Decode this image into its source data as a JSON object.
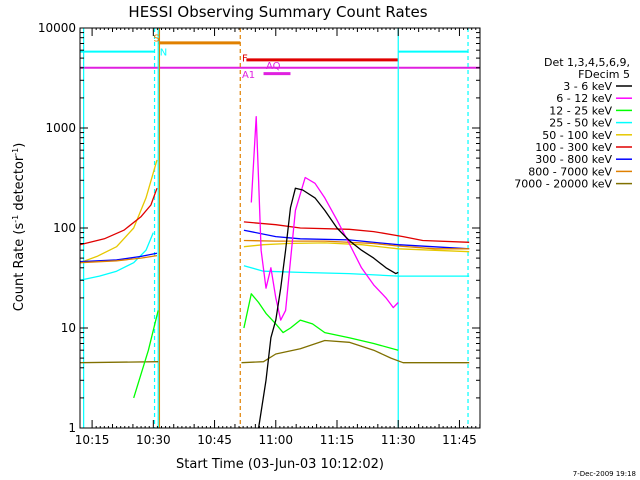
{
  "chart_data": {
    "type": "line",
    "title": "HESSI Observing Summary Count Rates",
    "xlabel": "Start Time (03-Jun-03 10:12:02)",
    "ylabel_main": "Count Rate (s",
    "ylabel_exp": "-1",
    "ylabel_tail": " detector",
    "ylabel_exp2": "-1",
    "ylabel_close": ")",
    "xlim": [
      10.2006,
      11.8339
    ],
    "ylim": [
      1,
      10000
    ],
    "yscale": "log",
    "x_ticks": [
      {
        "t": 10.25,
        "label": "10:15"
      },
      {
        "t": 10.5,
        "label": "10:30"
      },
      {
        "t": 10.75,
        "label": "10:45"
      },
      {
        "t": 11.0,
        "label": "11:00"
      },
      {
        "t": 11.25,
        "label": "11:15"
      },
      {
        "t": 11.5,
        "label": "11:30"
      },
      {
        "t": 11.75,
        "label": "11:45"
      }
    ],
    "y_ticks": [
      {
        "v": 1,
        "label": "1"
      },
      {
        "v": 10,
        "label": "10"
      },
      {
        "v": 100,
        "label": "100"
      },
      {
        "v": 1000,
        "label": "1000"
      },
      {
        "v": 10000,
        "label": "10000"
      }
    ],
    "legend": {
      "header1": "Det 1,3,4,5,6,9,",
      "header2": "FDecim 5",
      "position": "right",
      "entries": [
        {
          "label": "3 - 6 keV",
          "color": "#000000"
        },
        {
          "label": "6 - 12 keV",
          "color": "#ff00ff"
        },
        {
          "label": "12 - 25 keV",
          "color": "#00ff00"
        },
        {
          "label": "25 - 50 keV",
          "color": "#00ffff"
        },
        {
          "label": "50 - 100 keV",
          "color": "#e6c800"
        },
        {
          "label": "100 - 300 keV",
          "color": "#e00000"
        },
        {
          "label": "300 - 800 keV",
          "color": "#0000ff"
        },
        {
          "label": "800 - 7000 keV",
          "color": "#e08000"
        },
        {
          "label": "7000 - 20000 keV",
          "color": "#807000"
        }
      ]
    },
    "series": [
      {
        "color": "#00ffff",
        "points": [
          [
            10.2,
            30
          ],
          [
            10.28,
            33
          ],
          [
            10.35,
            37
          ],
          [
            10.42,
            45
          ],
          [
            10.47,
            60
          ],
          [
            10.5,
            90
          ]
        ]
      },
      {
        "color": "#807000",
        "points": [
          [
            10.2,
            4.5
          ],
          [
            10.52,
            4.6
          ]
        ]
      },
      {
        "color": "#e6c800",
        "points": [
          [
            10.2,
            45
          ],
          [
            10.27,
            52
          ],
          [
            10.35,
            65
          ],
          [
            10.42,
            100
          ],
          [
            10.47,
            200
          ],
          [
            10.515,
            480
          ]
        ]
      },
      {
        "color": "#e00000",
        "points": [
          [
            10.2,
            68
          ],
          [
            10.3,
            78
          ],
          [
            10.38,
            95
          ],
          [
            10.45,
            130
          ],
          [
            10.49,
            170
          ],
          [
            10.515,
            250
          ]
        ]
      },
      {
        "color": "#0000ff",
        "points": [
          [
            10.2,
            46
          ],
          [
            10.35,
            48
          ],
          [
            10.45,
            52
          ],
          [
            10.515,
            56
          ]
        ]
      },
      {
        "color": "#e08000",
        "points": [
          [
            10.2,
            45
          ],
          [
            10.35,
            47
          ],
          [
            10.45,
            50
          ],
          [
            10.515,
            53
          ]
        ]
      },
      {
        "color": "#00ff00",
        "points": [
          [
            10.42,
            2
          ],
          [
            10.48,
            6
          ],
          [
            10.52,
            15
          ]
        ]
      },
      {
        "color": "#807000",
        "points": [
          [
            10.86,
            4.5
          ],
          [
            10.95,
            4.6
          ],
          [
            11.0,
            5.5
          ],
          [
            11.1,
            6.2
          ],
          [
            11.2,
            7.5
          ],
          [
            11.3,
            7.2
          ],
          [
            11.4,
            6.0
          ],
          [
            11.47,
            5.0
          ],
          [
            11.52,
            4.5
          ],
          [
            11.79,
            4.5
          ]
        ]
      },
      {
        "color": "#00ffff",
        "points": [
          [
            10.87,
            42
          ],
          [
            10.95,
            37
          ],
          [
            11.1,
            36
          ],
          [
            11.3,
            35
          ],
          [
            11.5,
            33
          ],
          [
            11.79,
            33
          ]
        ]
      },
      {
        "color": "#e00000",
        "points": [
          [
            10.87,
            115
          ],
          [
            11.0,
            108
          ],
          [
            11.1,
            100
          ],
          [
            11.3,
            97
          ],
          [
            11.4,
            92
          ],
          [
            11.52,
            82
          ],
          [
            11.6,
            75
          ],
          [
            11.79,
            72
          ]
        ]
      },
      {
        "color": "#0000ff",
        "points": [
          [
            10.87,
            95
          ],
          [
            11.0,
            82
          ],
          [
            11.1,
            78
          ],
          [
            11.3,
            76
          ],
          [
            11.5,
            68
          ],
          [
            11.79,
            62
          ]
        ]
      },
      {
        "color": "#e08000",
        "points": [
          [
            10.87,
            75
          ],
          [
            11.0,
            74
          ],
          [
            11.2,
            74
          ],
          [
            11.4,
            70
          ],
          [
            11.5,
            66
          ],
          [
            11.65,
            62
          ],
          [
            11.79,
            62
          ]
        ]
      },
      {
        "color": "#e6c800",
        "points": [
          [
            10.87,
            65
          ],
          [
            10.95,
            68
          ],
          [
            11.05,
            70
          ],
          [
            11.2,
            71
          ],
          [
            11.35,
            68
          ],
          [
            11.5,
            62
          ],
          [
            11.79,
            58
          ]
        ]
      },
      {
        "color": "#00ff00",
        "points": [
          [
            10.87,
            10
          ],
          [
            10.9,
            22
          ],
          [
            10.93,
            18
          ],
          [
            10.96,
            14
          ],
          [
            11.0,
            11
          ],
          [
            11.03,
            9
          ],
          [
            11.06,
            10
          ],
          [
            11.1,
            12
          ],
          [
            11.15,
            11
          ],
          [
            11.2,
            9
          ],
          [
            11.3,
            8
          ],
          [
            11.4,
            7
          ],
          [
            11.5,
            6
          ]
        ]
      },
      {
        "color": "#ff00ff",
        "points": [
          [
            10.9,
            180
          ],
          [
            10.92,
            1300
          ],
          [
            10.93,
            300
          ],
          [
            10.94,
            60
          ],
          [
            10.96,
            25
          ],
          [
            10.98,
            40
          ],
          [
            11.0,
            20
          ],
          [
            11.02,
            12
          ],
          [
            11.04,
            15
          ],
          [
            11.08,
            150
          ],
          [
            11.12,
            320
          ],
          [
            11.16,
            280
          ],
          [
            11.2,
            200
          ],
          [
            11.25,
            120
          ],
          [
            11.3,
            70
          ],
          [
            11.35,
            40
          ],
          [
            11.4,
            27
          ],
          [
            11.45,
            20
          ],
          [
            11.48,
            16
          ],
          [
            11.5,
            18
          ]
        ]
      },
      {
        "color": "#000000",
        "points": [
          [
            10.93,
            1
          ],
          [
            10.96,
            3
          ],
          [
            10.98,
            8
          ],
          [
            11.0,
            12
          ],
          [
            11.02,
            25
          ],
          [
            11.04,
            60
          ],
          [
            11.06,
            160
          ],
          [
            11.08,
            250
          ],
          [
            11.11,
            240
          ],
          [
            11.16,
            200
          ],
          [
            11.2,
            150
          ],
          [
            11.25,
            100
          ],
          [
            11.3,
            75
          ],
          [
            11.35,
            60
          ],
          [
            11.4,
            50
          ],
          [
            11.45,
            40
          ],
          [
            11.49,
            35
          ],
          [
            11.5,
            36
          ]
        ]
      }
    ],
    "vlines": [
      {
        "t": 10.2155,
        "color": "#00ffff",
        "style": "solid"
      },
      {
        "t": 10.505,
        "color": "#00ffff",
        "style": "dashed"
      },
      {
        "t": 10.52,
        "color": "#00ffff",
        "style": "solid"
      },
      {
        "t": 10.525,
        "color": "#e08000",
        "style": "solid"
      },
      {
        "t": 10.855,
        "color": "#e08000",
        "style": "dashed"
      },
      {
        "t": 11.5,
        "color": "#00ffff",
        "style": "solid"
      },
      {
        "t": 11.785,
        "color": "#00ffff",
        "style": "dashed"
      }
    ],
    "hbars": [
      {
        "t0": 10.2006,
        "t1": 11.8339,
        "v": 4000,
        "color": "#e020e0",
        "width": 2
      },
      {
        "t0": 10.2006,
        "t1": 10.505,
        "v": 5800,
        "color": "#00ffff",
        "width": 2
      },
      {
        "t0": 11.5,
        "t1": 11.785,
        "v": 5800,
        "color": "#00ffff",
        "width": 2
      },
      {
        "t0": 10.52,
        "t1": 10.855,
        "v": 7100,
        "color": "#e08000",
        "width": 3
      },
      {
        "t0": 10.88,
        "t1": 11.5,
        "v": 4800,
        "color": "#e00000",
        "width": 3
      },
      {
        "t0": 10.95,
        "t1": 11.06,
        "v": 3500,
        "color": "#e020e0",
        "width": 3
      }
    ],
    "annotations": [
      {
        "text": "S",
        "t": 10.5,
        "v": 7300,
        "color": "#e08000"
      },
      {
        "text": "N",
        "t": 10.526,
        "v": 5300,
        "color": "#00ffff"
      },
      {
        "text": "F",
        "t": 10.862,
        "v": 4600,
        "color": "#e00000"
      },
      {
        "text": "A1",
        "t": 10.862,
        "v": 3150,
        "color": "#e020e0"
      },
      {
        "text": "AQ",
        "t": 10.96,
        "v": 3900,
        "color": "#e020e0"
      }
    ],
    "footer_stamp": "7-Dec-2009 19:18"
  }
}
